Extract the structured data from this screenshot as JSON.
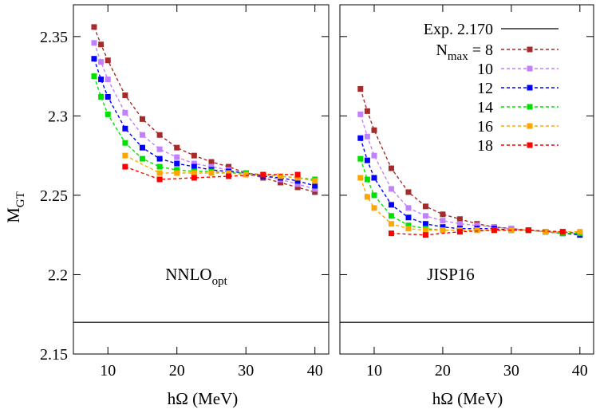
{
  "chart_data": {
    "type": "line",
    "ylabel_main": "M",
    "ylabel_sub": "GT",
    "xlabel": "hΩ (MeV)",
    "ylim": [
      2.15,
      2.37
    ],
    "xlim": [
      5,
      42
    ],
    "yticks": [
      2.15,
      2.2,
      2.25,
      2.3,
      2.35
    ],
    "ytick_labels": [
      "2.15",
      "2.2",
      "2.25",
      "2.3",
      "2.35"
    ],
    "xticks": [
      10,
      20,
      30,
      40
    ],
    "xtick_labels": [
      "10",
      "20",
      "30",
      "40"
    ],
    "legend": {
      "exp_label": "Exp.  2.170",
      "nmax_label_main": "N",
      "nmax_label_sub": "max",
      "nmax_label_eq": "=",
      "placement": "top-right",
      "entries": [
        "8",
        "10",
        "12",
        "14",
        "16",
        "18"
      ]
    },
    "exp_value": 2.17,
    "colors": {
      "8": "#a52a2a",
      "10": "#c080ff",
      "12": "#0000ff",
      "14": "#00e000",
      "16": "#ffa500",
      "18": "#ff0000"
    },
    "panels": [
      {
        "label_main": "NNLO",
        "label_sub": "opt",
        "series": [
          {
            "nmax": "8",
            "x": [
              8,
              9,
              10,
              12.5,
              15,
              17.5,
              20,
              22.5,
              25,
              27.5,
              30,
              32.5,
              35,
              37.5,
              40
            ],
            "y": [
              2.356,
              2.345,
              2.335,
              2.313,
              2.298,
              2.288,
              2.28,
              2.275,
              2.271,
              2.268,
              2.264,
              2.261,
              2.258,
              2.255,
              2.252
            ]
          },
          {
            "nmax": "10",
            "x": [
              8,
              9,
              10,
              12.5,
              15,
              17.5,
              20,
              22.5,
              25,
              27.5,
              30,
              32.5,
              35,
              37.5,
              40
            ],
            "y": [
              2.346,
              2.334,
              2.323,
              2.302,
              2.288,
              2.279,
              2.274,
              2.27,
              2.268,
              2.266,
              2.264,
              2.262,
              2.26,
              2.257,
              2.254
            ]
          },
          {
            "nmax": "12",
            "x": [
              8,
              9,
              10,
              12.5,
              15,
              17.5,
              20,
              22.5,
              25,
              27.5,
              30,
              32.5,
              35,
              37.5,
              40
            ],
            "y": [
              2.336,
              2.323,
              2.312,
              2.292,
              2.28,
              2.273,
              2.27,
              2.268,
              2.266,
              2.265,
              2.264,
              2.262,
              2.261,
              2.259,
              2.256
            ]
          },
          {
            "nmax": "14",
            "x": [
              8,
              9,
              10,
              12.5,
              15,
              17.5,
              20,
              22.5,
              25,
              27.5,
              30,
              32.5,
              35,
              37.5,
              40
            ],
            "y": [
              2.325,
              2.312,
              2.301,
              2.283,
              2.273,
              2.268,
              2.266,
              2.265,
              2.265,
              2.264,
              2.264,
              2.263,
              2.262,
              2.261,
              2.26
            ]
          },
          {
            "nmax": "16",
            "x": [
              12.5,
              17.5,
              20,
              22.5,
              25,
              27.5,
              30,
              32.5,
              35,
              37.5,
              40
            ],
            "y": [
              2.275,
              2.264,
              2.264,
              2.264,
              2.264,
              2.264,
              2.263,
              2.263,
              2.262,
              2.261,
              2.259
            ]
          },
          {
            "nmax": "18",
            "x": [
              12.5,
              17.5,
              22.5,
              27.5,
              32.5,
              37.5
            ],
            "y": [
              2.268,
              2.26,
              2.261,
              2.262,
              2.263,
              2.263
            ]
          }
        ]
      },
      {
        "label_main": "JISP16",
        "label_sub": "",
        "series": [
          {
            "nmax": "8",
            "x": [
              8,
              9,
              10,
              12.5,
              15,
              17.5,
              20,
              22.5,
              25,
              27.5,
              30,
              32.5,
              35,
              37.5,
              40
            ],
            "y": [
              2.317,
              2.303,
              2.291,
              2.267,
              2.252,
              2.243,
              2.238,
              2.235,
              2.232,
              2.23,
              2.229,
              2.228,
              2.227,
              2.227,
              2.226
            ]
          },
          {
            "nmax": "10",
            "x": [
              8,
              9,
              10,
              12.5,
              15,
              17.5,
              20,
              22.5,
              25,
              27.5,
              30,
              32.5,
              35,
              37.5,
              40
            ],
            "y": [
              2.301,
              2.287,
              2.275,
              2.254,
              2.242,
              2.237,
              2.234,
              2.232,
              2.231,
              2.23,
              2.229,
              2.228,
              2.227,
              2.226,
              2.226
            ]
          },
          {
            "nmax": "12",
            "x": [
              8,
              9,
              10,
              12.5,
              15,
              17.5,
              20,
              22.5,
              25,
              27.5,
              30,
              32.5,
              35,
              37.5,
              40
            ],
            "y": [
              2.286,
              2.272,
              2.261,
              2.244,
              2.236,
              2.232,
              2.23,
              2.229,
              2.229,
              2.229,
              2.228,
              2.228,
              2.227,
              2.226,
              2.225
            ]
          },
          {
            "nmax": "14",
            "x": [
              8,
              9,
              10,
              12.5,
              15,
              17.5,
              20,
              22.5,
              25,
              27.5,
              30,
              32.5,
              35,
              37.5,
              40
            ],
            "y": [
              2.273,
              2.26,
              2.25,
              2.237,
              2.231,
              2.229,
              2.228,
              2.228,
              2.228,
              2.228,
              2.228,
              2.228,
              2.227,
              2.226,
              2.226
            ]
          },
          {
            "nmax": "16",
            "x": [
              8,
              9,
              10,
              12.5,
              15,
              17.5,
              20,
              22.5,
              25,
              27.5,
              30,
              32.5,
              35,
              37.5,
              40
            ],
            "y": [
              2.261,
              2.249,
              2.242,
              2.232,
              2.229,
              2.228,
              2.228,
              2.228,
              2.228,
              2.228,
              2.228,
              2.228,
              2.227,
              2.227,
              2.227
            ]
          },
          {
            "nmax": "18",
            "x": [
              12.5,
              17.5,
              22.5,
              27.5,
              32.5,
              37.5
            ],
            "y": [
              2.226,
              2.225,
              2.227,
              2.228,
              2.228,
              2.227
            ]
          }
        ]
      }
    ]
  }
}
